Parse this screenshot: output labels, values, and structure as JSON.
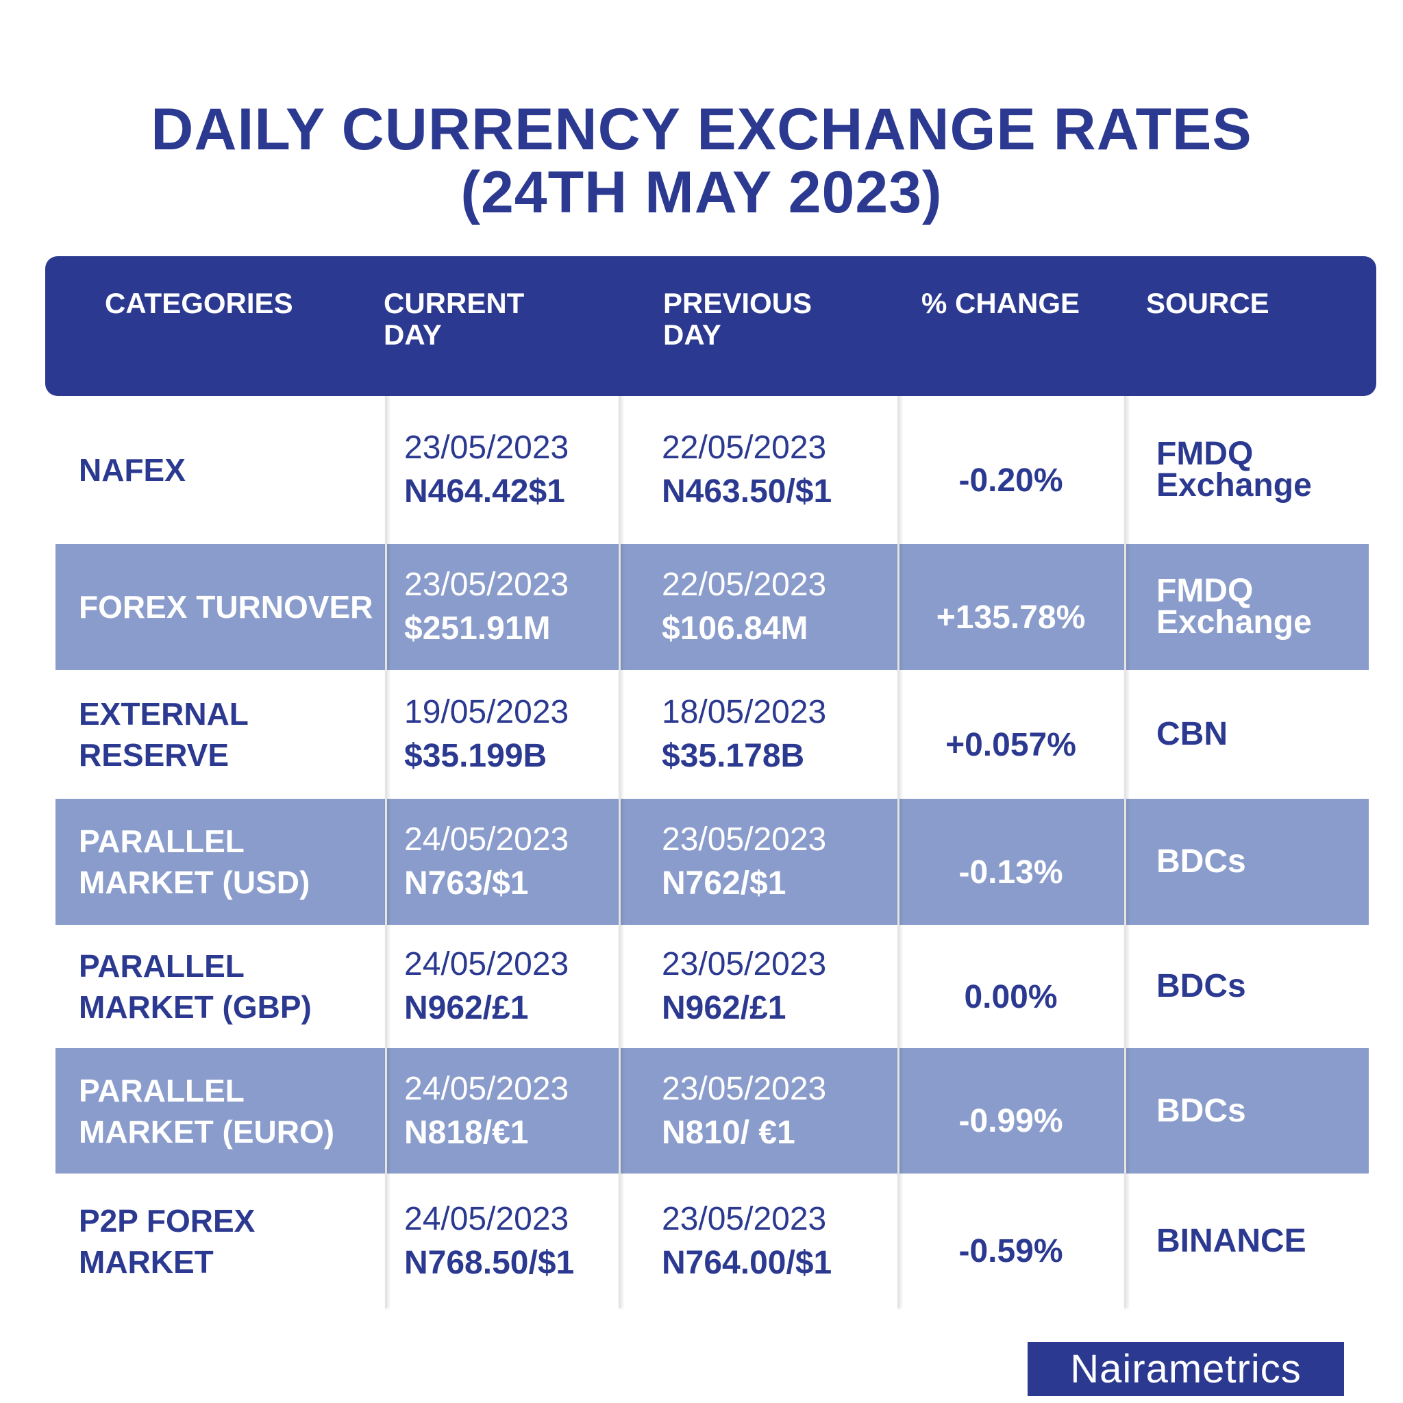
{
  "header": {
    "title": [
      "DAILY CURRENCY EXCHANGE RATES",
      "(24TH MAY 2023)"
    ]
  },
  "table": {
    "columns": [
      "CATEGORIES",
      "CURRENT DAY",
      "PREVIOUS DAY",
      "% CHANGE",
      "SOURCE"
    ],
    "rows": [
      {
        "category": "NAFEX",
        "current_date": "23/05/2023",
        "current_value": "N464.42$1",
        "previous_date": "22/05/2023",
        "previous_value": "N463.50/$1",
        "change": "-0.20%",
        "source": "FMDQ Exchange"
      },
      {
        "category": "FOREX TURNOVER",
        "current_date": "23/05/2023",
        "current_value": "$251.91M",
        "previous_date": "22/05/2023",
        "previous_value": "$106.84M",
        "change": "+135.78%",
        "source": "FMDQ Exchange"
      },
      {
        "category": "EXTERNAL RESERVE",
        "current_date": "19/05/2023",
        "current_value": "$35.199B",
        "previous_date": "18/05/2023",
        "previous_value": "$35.178B",
        "change": "+0.057%",
        "source": "CBN"
      },
      {
        "category": "PARALLEL MARKET (USD)",
        "current_date": "24/05/2023",
        "current_value": "N763/$1",
        "previous_date": "23/05/2023",
        "previous_value": "N762/$1",
        "change": "-0.13%",
        "source": "BDCs"
      },
      {
        "category": "PARALLEL MARKET (GBP)",
        "current_date": "24/05/2023",
        "current_value": "N962/£1",
        "previous_date": "23/05/2023",
        "previous_value": "N962/£1",
        "change": "0.00%",
        "source": "BDCs"
      },
      {
        "category": "PARALLEL MARKET (EURO)",
        "current_date": "24/05/2023",
        "current_value": "N818/€1",
        "previous_date": "23/05/2023",
        "previous_value": "N810/ €1",
        "change": "-0.99%",
        "source": "BDCs"
      },
      {
        "category": "P2P FOREX MARKET",
        "current_date": "24/05/2023",
        "current_value": "N768.50/$1",
        "previous_date": "23/05/2023",
        "previous_value": "N764.00/$1",
        "change": "-0.59%",
        "source": "BINANCE"
      }
    ]
  },
  "footer": {
    "logo": "Nairametrics"
  }
}
